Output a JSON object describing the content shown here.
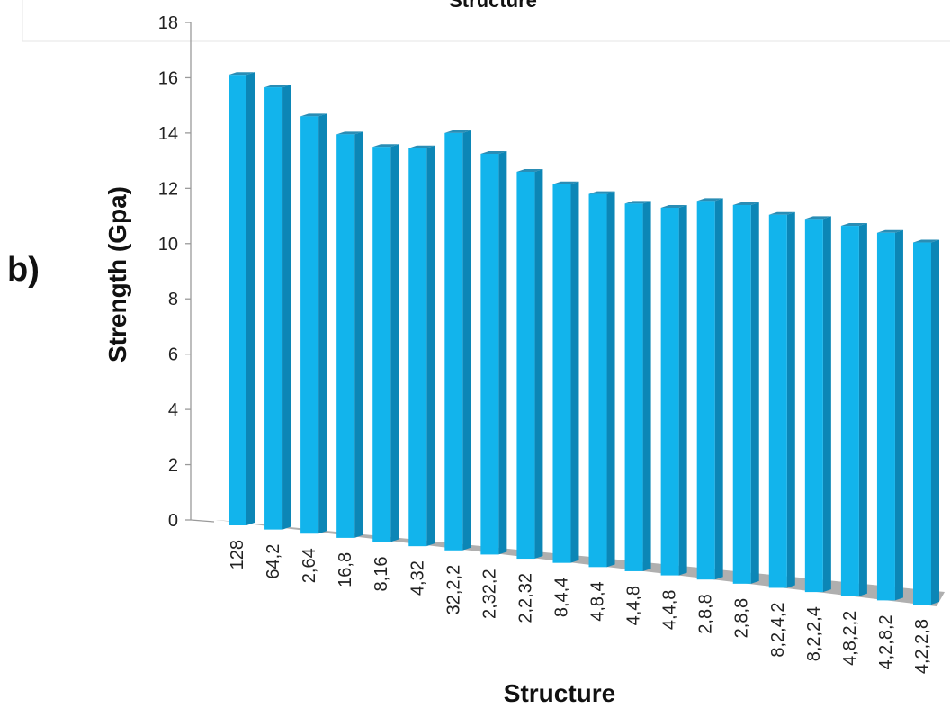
{
  "panel_label": "b)",
  "chart_data": {
    "type": "bar",
    "title": "Structure",
    "xlabel": "Structure",
    "ylabel": "Strength (Gpa)",
    "ylim": [
      0,
      18
    ],
    "yticks": [
      0,
      2,
      4,
      6,
      8,
      10,
      12,
      14,
      16,
      18
    ],
    "grid": false,
    "legend": "none",
    "bar_color": "#12B4EC",
    "bar_side_color": "#0C86B6",
    "bar_top_color": "#2A8DB5",
    "floor_color": "#AFAFAF",
    "categories": [
      "128",
      "64,2",
      "2,64",
      "16,8",
      "8,16",
      "4,32",
      "32,2,2",
      "2,32,2",
      "2,2,32",
      "8,4,4",
      "4,8,4",
      "4,4,8",
      "4,4,8",
      "2,8,8",
      "2,8,8",
      "8,2,4,2",
      "8,2,2,4",
      "4,8,2,2",
      "4,2,8,2",
      "4,2,2,8"
    ],
    "values": [
      16.3,
      16.0,
      15.1,
      14.6,
      14.3,
      14.4,
      15.1,
      14.5,
      14.0,
      13.7,
      13.5,
      13.3,
      13.3,
      13.7,
      13.7,
      13.5,
      13.5,
      13.4,
      13.3,
      13.1
    ]
  }
}
